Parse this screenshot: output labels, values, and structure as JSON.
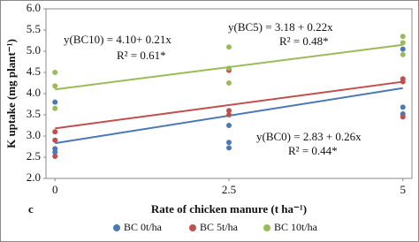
{
  "chart_data": {
    "type": "scatter",
    "panel_label": "c",
    "xlabel": "Rate of chicken manure (t ha⁻¹)",
    "ylabel": "K uptake (mg plant⁻¹)",
    "xlim": [
      -0.13,
      5.13
    ],
    "ylim": [
      2.0,
      6.0
    ],
    "xticks": [
      0,
      2.5,
      5
    ],
    "yticks": [
      {
        "value": 2,
        "label": "2.0"
      },
      {
        "value": 2.5,
        "label": "2.5"
      },
      {
        "value": 3,
        "label": "3.0"
      },
      {
        "value": 3.5,
        "label": "3.5"
      },
      {
        "value": 4,
        "label": "4.0"
      },
      {
        "value": 4.5,
        "label": "4.5"
      },
      {
        "value": 5,
        "label": "5.0"
      },
      {
        "value": 5.5,
        "label": "5.5"
      },
      {
        "value": 6,
        "label": "6.0"
      }
    ],
    "legend": "bottom",
    "series": [
      {
        "name": "BC 0t/ha",
        "color": "#4a78b8",
        "x": [
          0,
          0,
          0,
          2.5,
          2.5,
          2.5,
          5,
          5,
          5
        ],
        "values": [
          2.62,
          2.7,
          3.8,
          2.72,
          2.85,
          3.25,
          3.52,
          3.68,
          5.05
        ]
      },
      {
        "name": "BC 5t/ha",
        "color": "#c0504d",
        "x": [
          0,
          0,
          0,
          2.5,
          2.5,
          2.5,
          5,
          5,
          5
        ],
        "values": [
          2.52,
          2.9,
          3.1,
          3.5,
          3.6,
          4.55,
          3.45,
          4.28,
          4.35
        ]
      },
      {
        "name": "BC 10t/ha",
        "color": "#9bbb59",
        "x": [
          0,
          0,
          0,
          2.5,
          2.5,
          2.5,
          5,
          5,
          5
        ],
        "values": [
          3.65,
          4.18,
          4.5,
          4.25,
          4.6,
          5.1,
          4.92,
          5.2,
          5.35
        ]
      }
    ],
    "trendlines": [
      {
        "color": "#4a78b8",
        "x": [
          0,
          5
        ],
        "values": [
          2.83,
          4.13
        ]
      },
      {
        "color": "#c0504d",
        "x": [
          0,
          5
        ],
        "values": [
          3.18,
          4.28
        ]
      },
      {
        "color": "#9bbb59",
        "x": [
          0,
          5
        ],
        "values": [
          4.1,
          5.15
        ]
      }
    ],
    "annotations": [
      "y(BC10) = 4.10+ 0.21x",
      "R² = 0.61*",
      "y(BC5) = 3.18 + 0.22x",
      "R² = 0.48*",
      "y(BC0) = 2.83 + 0.26x",
      "R² = 0.44*"
    ]
  }
}
